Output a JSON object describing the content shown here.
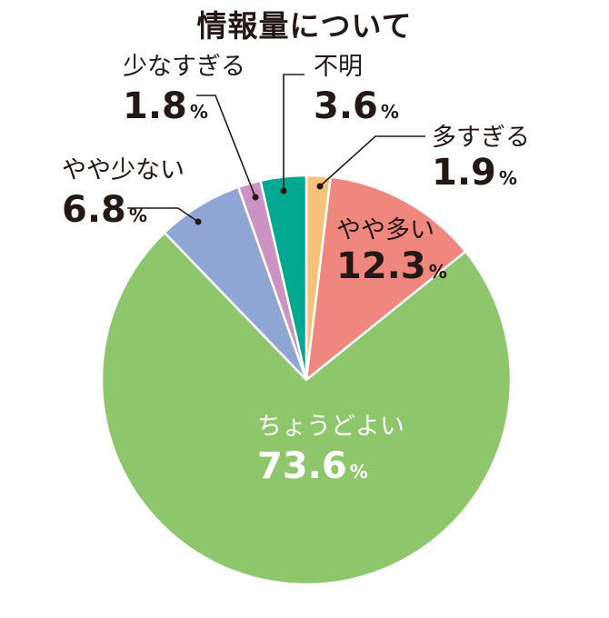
{
  "chart_data": {
    "type": "pie",
    "title": "情報量について",
    "slices": [
      {
        "label": "多すぎる",
        "value": 1.9,
        "color": "#F6C27A"
      },
      {
        "label": "やや多い",
        "value": 12.3,
        "color": "#EF877F"
      },
      {
        "label": "ちょうどよい",
        "value": 73.6,
        "color": "#8DC66B"
      },
      {
        "label": "やや少ない",
        "value": 6.8,
        "color": "#8FA6D5"
      },
      {
        "label": "少なすぎる",
        "value": 1.8,
        "color": "#CC92C3"
      },
      {
        "label": "不明",
        "value": 3.6,
        "color": "#00A98F"
      }
    ],
    "labels": [
      {
        "category": "多すぎる",
        "number": "1.9",
        "unit": "%"
      },
      {
        "category": "やや多い",
        "number": "12.3",
        "unit": "%"
      },
      {
        "category": "ちょうどよい",
        "number": "73.6",
        "unit": "%"
      },
      {
        "category": "やや少ない",
        "number": "6.8",
        "unit": "%"
      },
      {
        "category": "少なすぎる",
        "number": "1.8",
        "unit": "%"
      },
      {
        "category": "不明",
        "number": "3.6",
        "unit": "%"
      }
    ]
  }
}
